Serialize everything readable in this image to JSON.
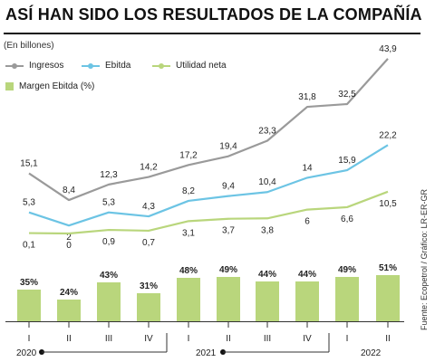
{
  "title": "ASÍ HAN SIDO LOS RESULTADOS DE LA COMPAÑÍA",
  "source": "Fuente: Ecopetrol / Gráfico: LR-ER-GR",
  "chart_data": [
    {
      "type": "line",
      "subtitle": "(En billones)",
      "categories": [
        "I",
        "II",
        "III",
        "IV",
        "I",
        "II",
        "III",
        "IV",
        "I",
        "II"
      ],
      "series": [
        {
          "name": "Ingresos",
          "color": "#9a9a9a",
          "values": [
            15.1,
            8.4,
            12.3,
            14.2,
            17.2,
            19.4,
            23.3,
            31.8,
            32.5,
            43.9
          ],
          "labels": [
            "15,1",
            "8,4",
            "12,3",
            "14,2",
            "17,2",
            "19,4",
            "23,3",
            "31,8",
            "32,5",
            "43,9"
          ]
        },
        {
          "name": "Ebitda",
          "color": "#6cc4e4",
          "values": [
            5.3,
            2,
            5.3,
            4.3,
            8.2,
            9.4,
            10.4,
            14,
            15.9,
            22.2
          ],
          "labels": [
            "5,3",
            "2",
            "5,3",
            "4,3",
            "8,2",
            "9,4",
            "10,4",
            "14",
            "15,9",
            "22,2"
          ]
        },
        {
          "name": "Utilidad neta",
          "color": "#b9d67c",
          "values": [
            0.1,
            0,
            0.9,
            0.7,
            3.1,
            3.7,
            3.8,
            6,
            6.6,
            10.5
          ],
          "labels": [
            "0,1",
            "0",
            "0,9",
            "0,7",
            "3,1",
            "3,7",
            "3,8",
            "6",
            "6,6",
            "10,5"
          ]
        }
      ]
    },
    {
      "type": "bar",
      "legend": "Margen Ebitda (%)",
      "color": "#b9d67c",
      "categories": [
        "I",
        "II",
        "III",
        "IV",
        "I",
        "II",
        "III",
        "IV",
        "I",
        "II"
      ],
      "values": [
        35,
        24,
        43,
        31,
        48,
        49,
        44,
        44,
        49,
        51
      ],
      "labels": [
        "35%",
        "24%",
        "43%",
        "31%",
        "48%",
        "49%",
        "44%",
        "44%",
        "49%",
        "51%"
      ]
    }
  ],
  "years": [
    {
      "label": "2020",
      "start": 0,
      "end": 3
    },
    {
      "label": "2021",
      "start": 4,
      "end": 7
    },
    {
      "label": "2022",
      "start": 8,
      "end": 9
    }
  ]
}
